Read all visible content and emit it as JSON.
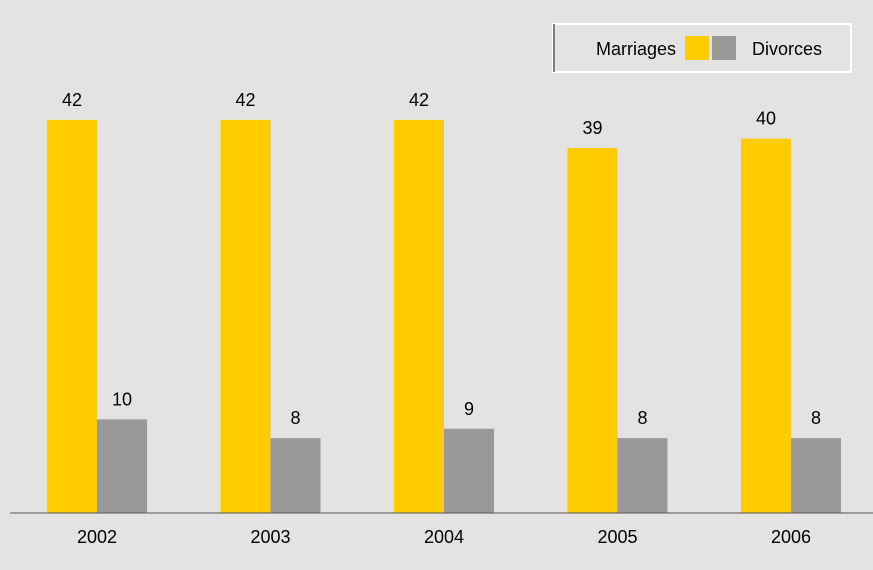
{
  "chart_data": {
    "type": "bar",
    "title": "",
    "xlabel": "",
    "ylabel": "",
    "categories": [
      "2002",
      "2003",
      "2004",
      "2005",
      "2006"
    ],
    "series": [
      {
        "name": "Marriages",
        "color": "#ffcc00",
        "values": [
          42,
          42,
          42,
          39,
          40
        ]
      },
      {
        "name": "Divorces",
        "color": "#999999",
        "values": [
          10,
          8,
          9,
          8,
          8
        ]
      }
    ],
    "ylim": [
      0,
      50
    ],
    "grid": false,
    "legend_position": "top-right",
    "data_labels": true
  }
}
